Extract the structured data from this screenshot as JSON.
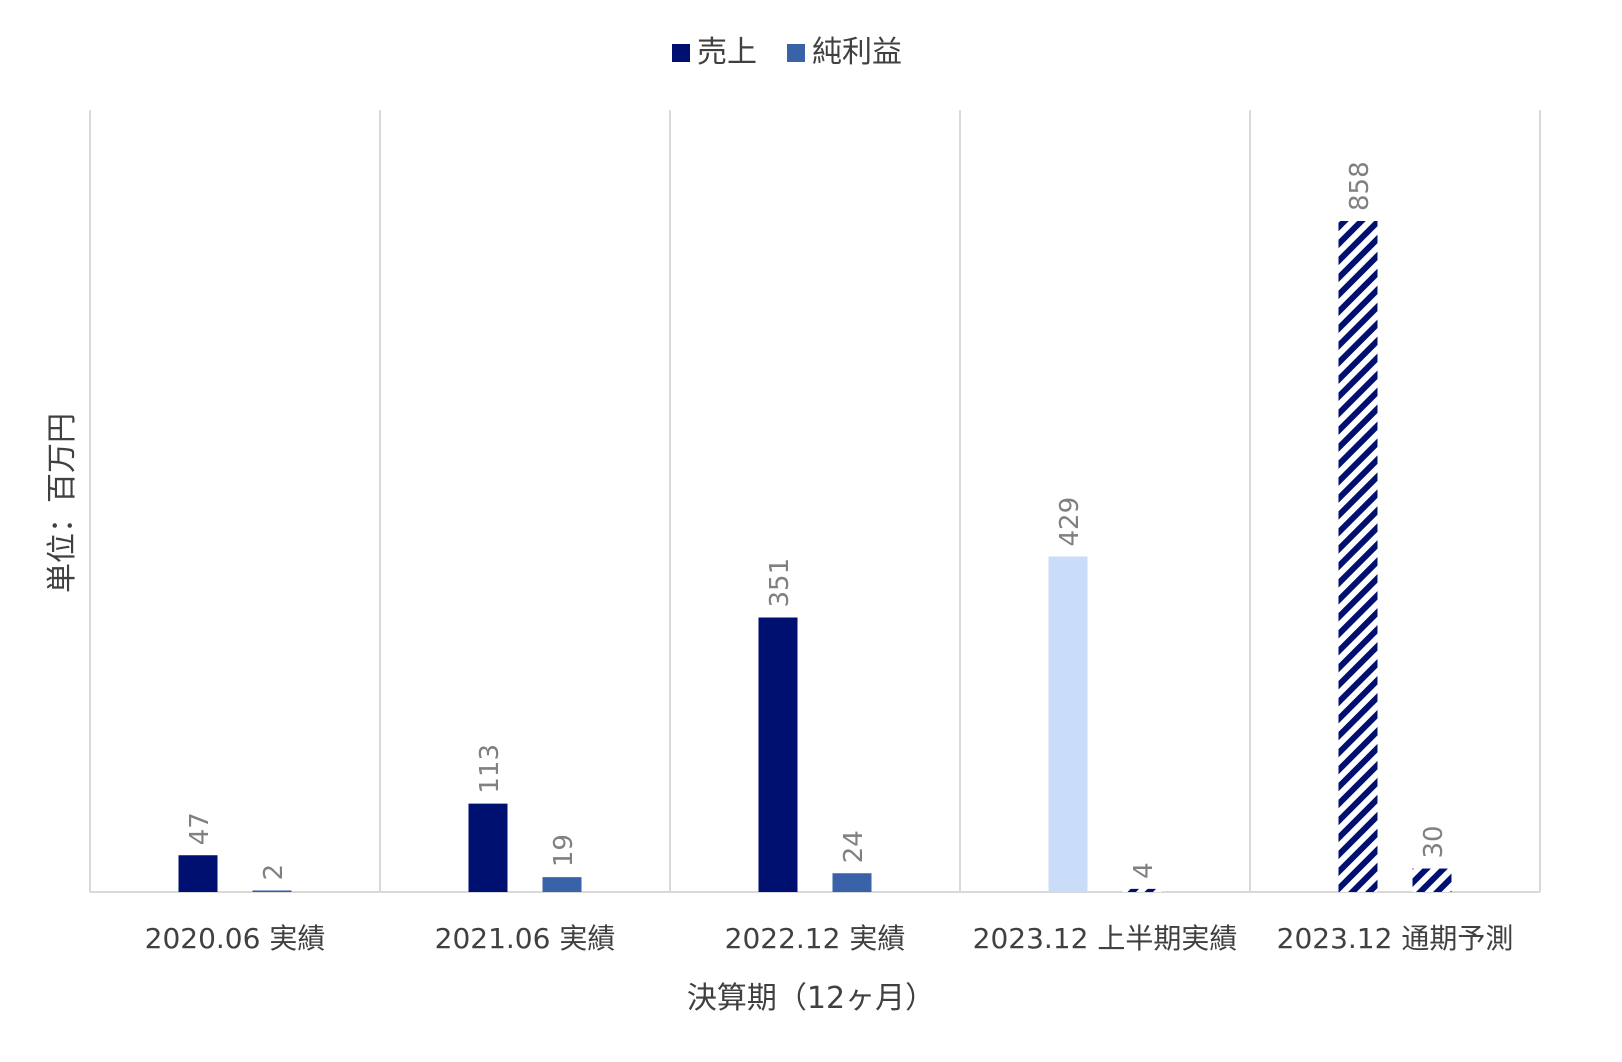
{
  "chart_data": {
    "type": "bar",
    "title": "",
    "xlabel": "決算期（12ヶ月）",
    "ylabel": "単位：百万円",
    "ylim": [
      0,
      900
    ],
    "grid": "vertical category separators",
    "legend_position": "top-center",
    "categories": [
      "2020.06 実績",
      "2021.06 実績",
      "2022.12 実績",
      "2023.12 上半期実績",
      "2023.12 通期予測"
    ],
    "series": [
      {
        "name": "売上",
        "values": [
          47,
          113,
          351,
          429,
          858
        ]
      },
      {
        "name": "純利益",
        "values": [
          2,
          19,
          24,
          4,
          30
        ]
      }
    ],
    "bar_styles": [
      [
        "solid-navy",
        "solid-blue"
      ],
      [
        "solid-navy",
        "solid-blue"
      ],
      [
        "solid-navy",
        "solid-blue"
      ],
      [
        "solid-light-blue",
        "hatched-navy"
      ],
      [
        "hatched-navy",
        "hatched-navy"
      ]
    ],
    "colors": {
      "sales": "#001070",
      "profit": "#3a62a8",
      "half_year_sales": "#c9dcf8",
      "hatch": "#001070",
      "grid": "#d9d9d9",
      "axis": "#d9d9d9",
      "text": "#404040",
      "data_label": "#808080"
    }
  }
}
